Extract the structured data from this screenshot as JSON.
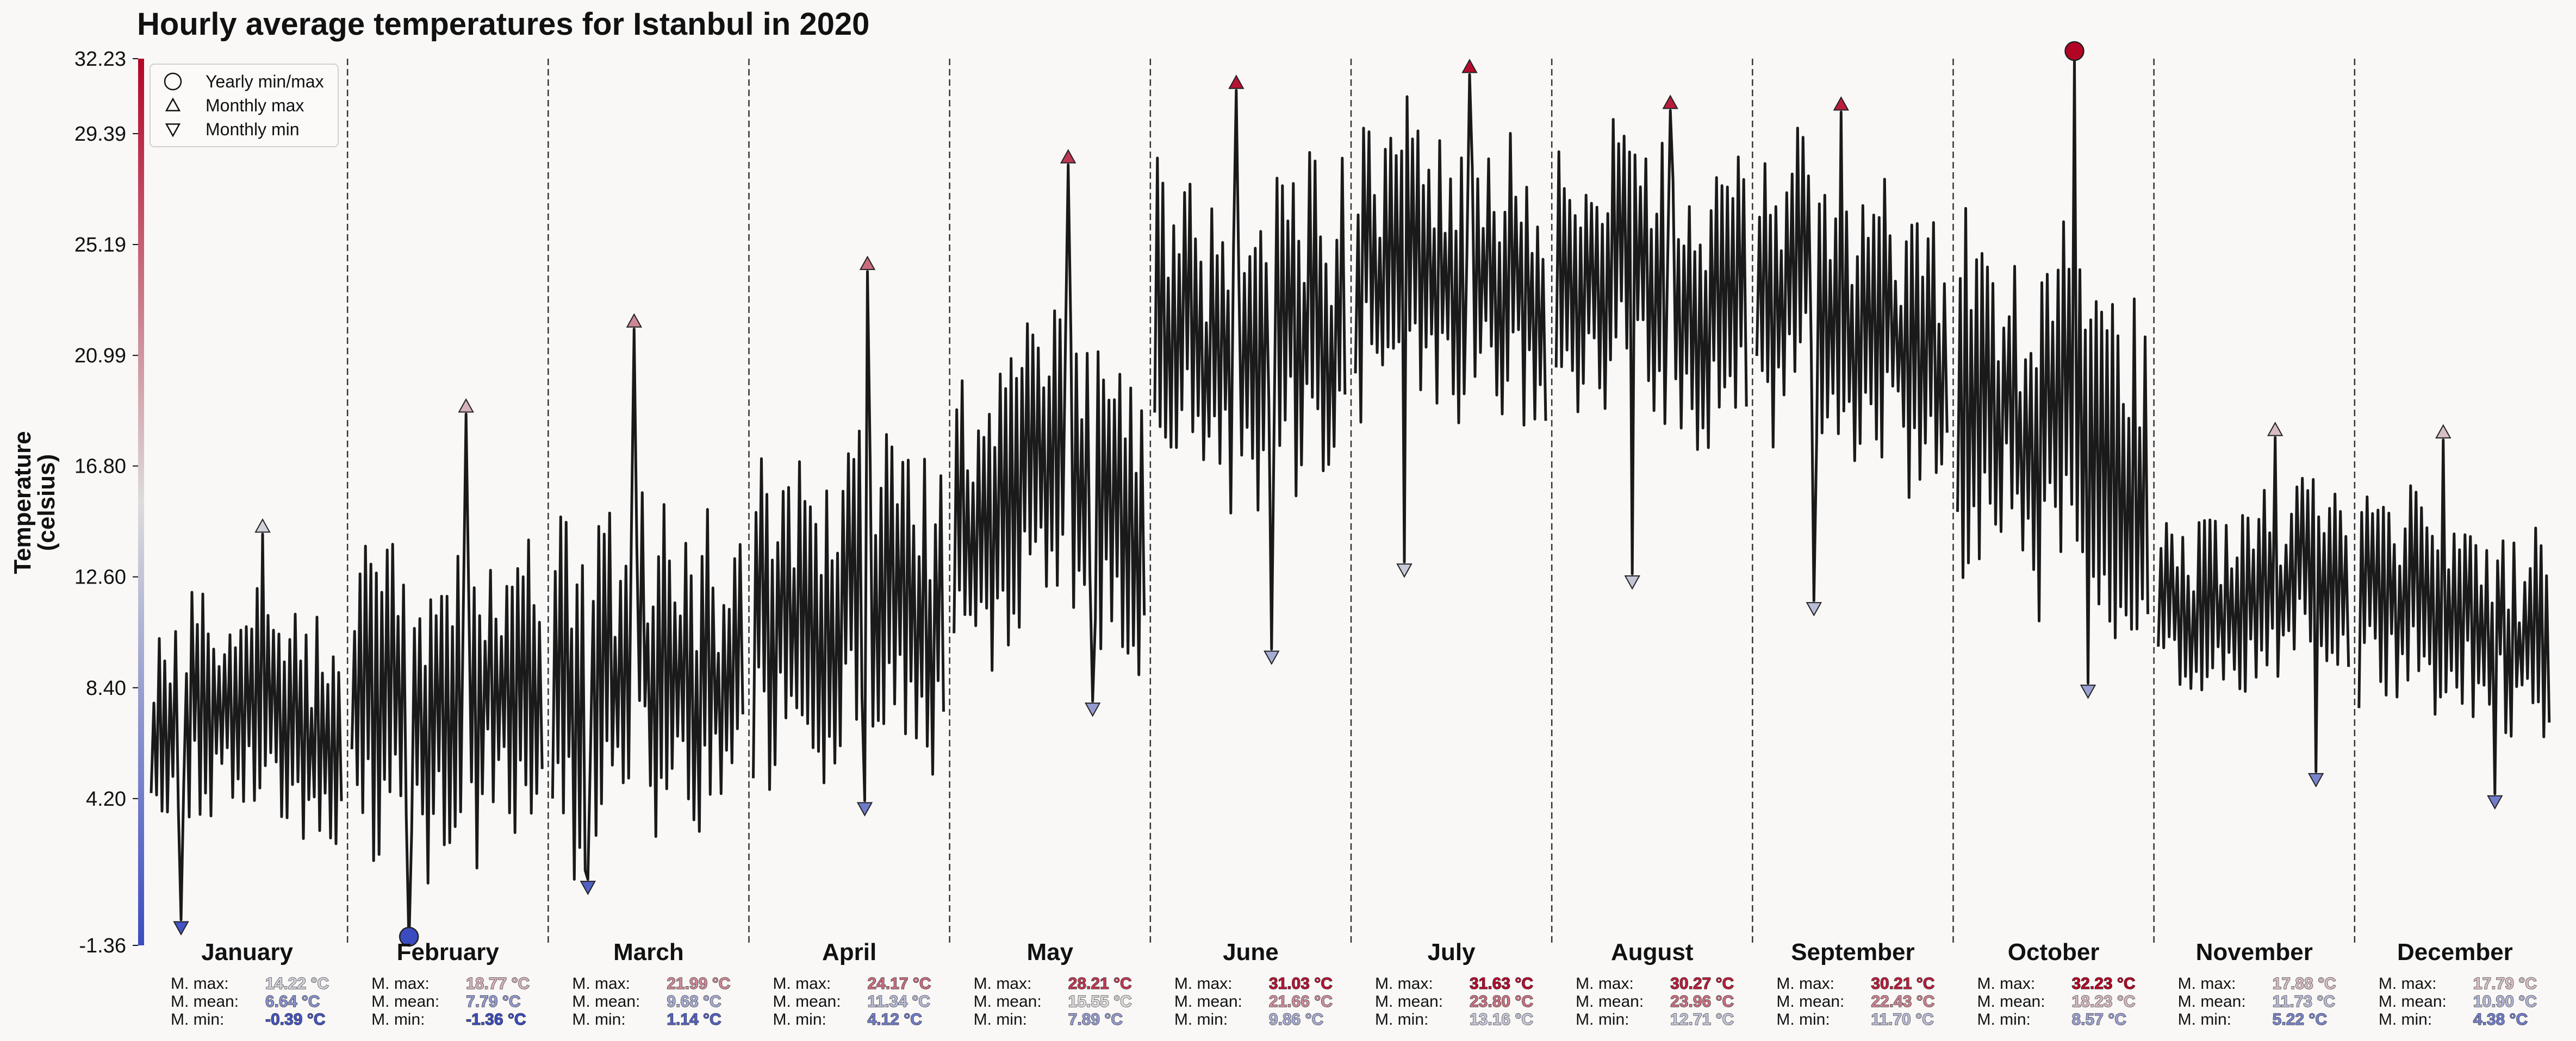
{
  "chart_data": {
    "type": "line",
    "title": "Hourly average temperatures for Istanbul in 2020",
    "ylabel_lines": [
      "Temperature",
      "(celsius)"
    ],
    "ylim": [
      -1.36,
      32.23
    ],
    "yticks": [
      "32.23",
      "29.39",
      "25.19",
      "20.99",
      "16.80",
      "12.60",
      "8.40",
      "4.20",
      "-1.36"
    ],
    "ytick_values": [
      32.23,
      29.39,
      25.19,
      20.99,
      16.8,
      12.6,
      8.4,
      4.2,
      -1.36
    ],
    "legend": {
      "placement": "top-left",
      "items": [
        {
          "marker": "circle",
          "label": "Yearly min/max"
        },
        {
          "marker": "triangle-up",
          "label": "Monthly max"
        },
        {
          "marker": "triangle-down",
          "label": "Monthly min"
        }
      ]
    },
    "stat_labels": {
      "max": "M. max:",
      "mean": "M. mean:",
      "min": "M. min:"
    },
    "yearly": {
      "max": 32.23,
      "max_month": "October",
      "min": -1.36,
      "min_month": "February"
    },
    "colormap": {
      "cold": "#3b4cc0",
      "neutral": "#dddcdc",
      "hot": "#b40426"
    },
    "months": [
      {
        "name": "January",
        "max": "14.22 °C",
        "mean": "6.64 °C",
        "min": "-0.39 °C",
        "max_v": 14.22,
        "mean_v": 6.64,
        "min_v": -0.39
      },
      {
        "name": "February",
        "max": "18.77 °C",
        "mean": "7.79 °C",
        "min": "-1.36 °C",
        "max_v": 18.77,
        "mean_v": 7.79,
        "min_v": -1.36
      },
      {
        "name": "March",
        "max": "21.99 °C",
        "mean": "9.68 °C",
        "min": "1.14 °C",
        "max_v": 21.99,
        "mean_v": 9.68,
        "min_v": 1.14
      },
      {
        "name": "April",
        "max": "24.17 °C",
        "mean": "11.34 °C",
        "min": "4.12 °C",
        "max_v": 24.17,
        "mean_v": 11.34,
        "min_v": 4.12
      },
      {
        "name": "May",
        "max": "28.21 °C",
        "mean": "15.55 °C",
        "min": "7.89 °C",
        "max_v": 28.21,
        "mean_v": 15.55,
        "min_v": 7.89
      },
      {
        "name": "June",
        "max": "31.03 °C",
        "mean": "21.66 °C",
        "min": "9.86 °C",
        "max_v": 31.03,
        "mean_v": 21.66,
        "min_v": 9.86
      },
      {
        "name": "July",
        "max": "31.63 °C",
        "mean": "23.80 °C",
        "min": "13.16 °C",
        "max_v": 31.63,
        "mean_v": 23.8,
        "min_v": 13.16
      },
      {
        "name": "August",
        "max": "30.27 °C",
        "mean": "23.96 °C",
        "min": "12.71 °C",
        "max_v": 30.27,
        "mean_v": 23.96,
        "min_v": 12.71
      },
      {
        "name": "September",
        "max": "30.21 °C",
        "mean": "22.43 °C",
        "min": "11.70 °C",
        "max_v": 30.21,
        "mean_v": 22.43,
        "min_v": 11.7
      },
      {
        "name": "October",
        "max": "32.23 °C",
        "mean": "18.23 °C",
        "min": "8.57 °C",
        "max_v": 32.23,
        "mean_v": 18.23,
        "min_v": 8.57
      },
      {
        "name": "November",
        "max": "17.88 °C",
        "mean": "11.73 °C",
        "min": "5.22 °C",
        "max_v": 17.88,
        "mean_v": 11.73,
        "min_v": 5.22
      },
      {
        "name": "December",
        "max": "17.79 °C",
        "mean": "10.90 °C",
        "min": "4.38 °C",
        "max_v": 17.79,
        "mean_v": 10.9,
        "min_v": 4.38
      }
    ]
  }
}
